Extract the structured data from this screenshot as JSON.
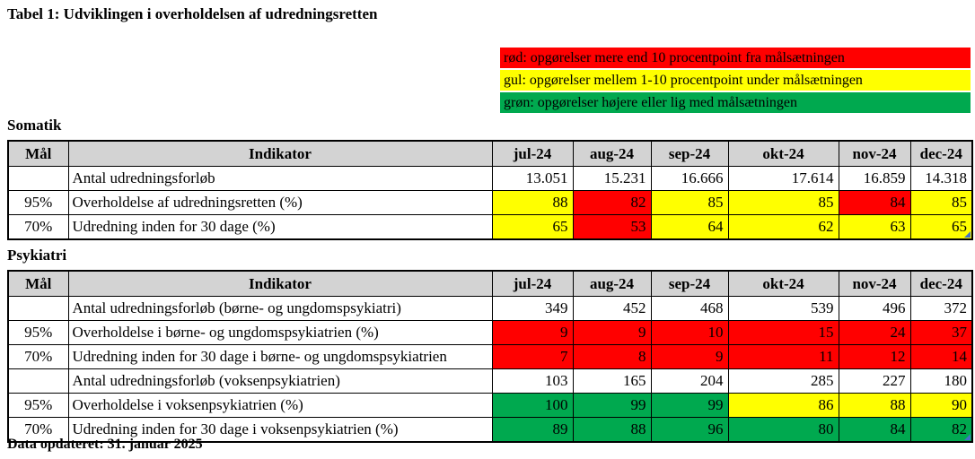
{
  "title": "Tabel 1: Udviklingen i overholdelsen af udredningsretten",
  "footer": "Data opdateret: 31. januar 2025",
  "colors": {
    "red": "#FF0000",
    "yellow": "#FFFF00",
    "green": "#00A94F",
    "header_gray": "#D3D3D3",
    "marker_blue": "#4472C4",
    "none": "transparent"
  },
  "legend": [
    {
      "color": "red",
      "label": "rød: opgørelser mere end 10 procentpoint fra målsætningen"
    },
    {
      "color": "yellow",
      "label": "gul: opgørelser mellem 1-10 procentpoint under målsætningen"
    },
    {
      "color": "green",
      "label": "grøn: opgørelser højere eller lig med målsætningen"
    }
  ],
  "column_headers": {
    "maal": "Mål",
    "indikator": "Indikator"
  },
  "months": [
    "jul-24",
    "aug-24",
    "sep-24",
    "okt-24",
    "nov-24",
    "dec-24"
  ],
  "tables": [
    {
      "section": "Somatik",
      "rows": [
        {
          "maal": "",
          "indikator": "Antal udredningsforløb",
          "values": [
            "13.051",
            "15.231",
            "16.666",
            "17.614",
            "16.859",
            "14.318"
          ],
          "cell_colors": [
            "none",
            "none",
            "none",
            "none",
            "none",
            "none"
          ]
        },
        {
          "maal": "95%",
          "indikator": "Overholdelse af udredningsretten (%)",
          "values": [
            "88",
            "82",
            "85",
            "85",
            "84",
            "85"
          ],
          "cell_colors": [
            "yellow",
            "red",
            "yellow",
            "yellow",
            "red",
            "yellow"
          ]
        },
        {
          "maal": "70%",
          "indikator": "Udredning inden for 30 dage (%)",
          "values": [
            "65",
            "53",
            "64",
            "62",
            "63",
            "65"
          ],
          "cell_colors": [
            "yellow",
            "red",
            "yellow",
            "yellow",
            "yellow",
            "yellow"
          ],
          "corner_marker": true
        }
      ]
    },
    {
      "section": "Psykiatri",
      "rows": [
        {
          "maal": "",
          "indikator": "Antal udredningsforløb (børne- og ungdomspsykiatri)",
          "values": [
            "349",
            "452",
            "468",
            "539",
            "496",
            "372"
          ],
          "cell_colors": [
            "none",
            "none",
            "none",
            "none",
            "none",
            "none"
          ]
        },
        {
          "maal": "95%",
          "indikator": "Overholdelse i børne- og ungdomspsykiatrien (%)",
          "values": [
            "9",
            "9",
            "10",
            "15",
            "24",
            "37"
          ],
          "cell_colors": [
            "red",
            "red",
            "red",
            "red",
            "red",
            "red"
          ]
        },
        {
          "maal": "70%",
          "indikator": "Udredning inden for 30 dage i børne- og ungdomspsykiatrien",
          "values": [
            "7",
            "8",
            "9",
            "11",
            "12",
            "14"
          ],
          "cell_colors": [
            "red",
            "red",
            "red",
            "red",
            "red",
            "red"
          ]
        },
        {
          "maal": "",
          "indikator": "Antal udredningsforløb (voksenpsykiatrien)",
          "values": [
            "103",
            "165",
            "204",
            "285",
            "227",
            "180"
          ],
          "cell_colors": [
            "none",
            "none",
            "none",
            "none",
            "none",
            "none"
          ]
        },
        {
          "maal": "95%",
          "indikator": "Overholdelse i voksenpsykiatrien (%)",
          "values": [
            "100",
            "99",
            "99",
            "86",
            "88",
            "90"
          ],
          "cell_colors": [
            "green",
            "green",
            "green",
            "yellow",
            "yellow",
            "yellow"
          ]
        },
        {
          "maal": "70%",
          "indikator": "Udredning inden for 30 dage i voksenpsykiatrien (%)",
          "values": [
            "89",
            "88",
            "96",
            "80",
            "84",
            "82"
          ],
          "cell_colors": [
            "green",
            "green",
            "green",
            "green",
            "green",
            "green"
          ],
          "corner_marker": true
        }
      ]
    }
  ]
}
